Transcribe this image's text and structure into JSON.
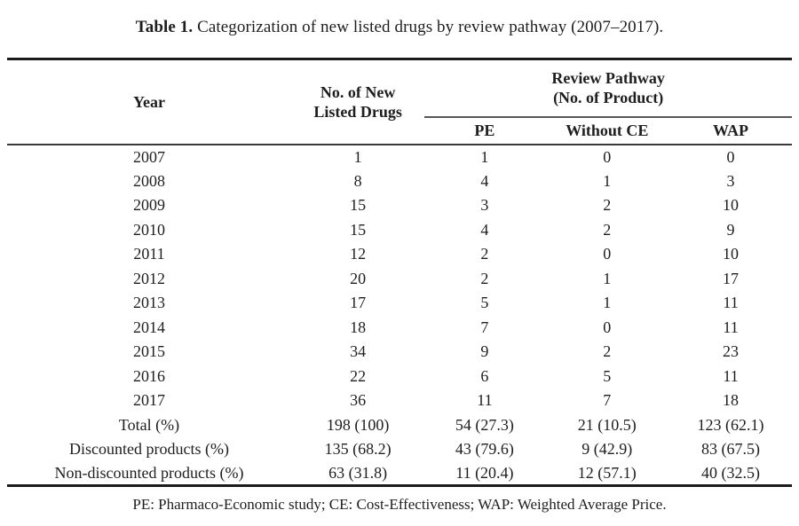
{
  "title": {
    "label": "Table 1.",
    "text": " Categorization of new listed drugs by review pathway (2007–2017)."
  },
  "table": {
    "header": {
      "year": "Year",
      "new_listed_line1": "No. of New",
      "new_listed_line2": "Listed Drugs",
      "group_line1": "Review Pathway",
      "group_line2": "(No. of Product)",
      "pe": "PE",
      "without_ce": "Without CE",
      "wap": "WAP"
    },
    "rows": [
      {
        "label": "2007",
        "values": [
          "1",
          "1",
          "0",
          "0"
        ]
      },
      {
        "label": "2008",
        "values": [
          "8",
          "4",
          "1",
          "3"
        ]
      },
      {
        "label": "2009",
        "values": [
          "15",
          "3",
          "2",
          "10"
        ]
      },
      {
        "label": "2010",
        "values": [
          "15",
          "4",
          "2",
          "9"
        ]
      },
      {
        "label": "2011",
        "values": [
          "12",
          "2",
          "0",
          "10"
        ]
      },
      {
        "label": "2012",
        "values": [
          "20",
          "2",
          "1",
          "17"
        ]
      },
      {
        "label": "2013",
        "values": [
          "17",
          "5",
          "1",
          "11"
        ]
      },
      {
        "label": "2014",
        "values": [
          "18",
          "7",
          "0",
          "11"
        ]
      },
      {
        "label": "2015",
        "values": [
          "34",
          "9",
          "2",
          "23"
        ]
      },
      {
        "label": "2016",
        "values": [
          "22",
          "6",
          "5",
          "11"
        ]
      },
      {
        "label": "2017",
        "values": [
          "36",
          "11",
          "7",
          "18"
        ]
      },
      {
        "label": "Total (%)",
        "values": [
          "198 (100)",
          "54 (27.3)",
          "21 (10.5)",
          "123 (62.1)"
        ]
      },
      {
        "label": "Discounted products (%)",
        "values": [
          "135 (68.2)",
          "43 (79.6)",
          "9 (42.9)",
          "83 (67.5)"
        ]
      },
      {
        "label": "Non-discounted products (%)",
        "values": [
          "63 (31.8)",
          "11 (20.4)",
          "12 (57.1)",
          "40 (32.5)"
        ]
      }
    ]
  },
  "footnote": "PE: Pharmaco-Economic study; CE: Cost-Effectiveness; WAP: Weighted Average Price."
}
